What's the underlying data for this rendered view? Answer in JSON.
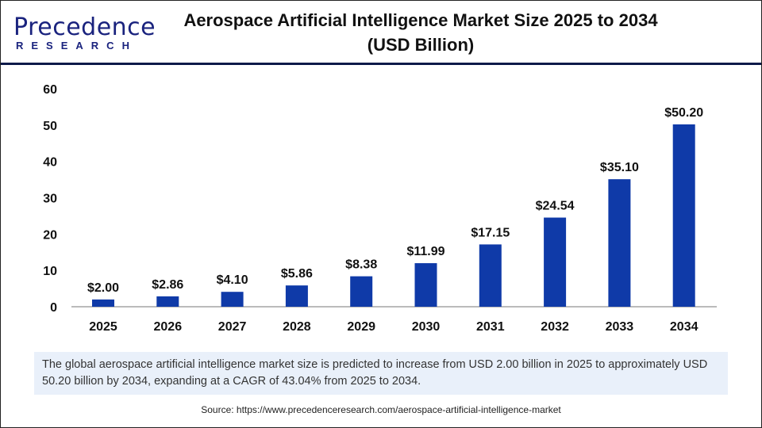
{
  "logo": {
    "line1": "Precedence",
    "line2": "RESEARCH"
  },
  "title": "Aerospace Artificial Intelligence Market Size 2025 to 2034 (USD Billion)",
  "chart_data": {
    "type": "bar",
    "categories": [
      "2025",
      "2026",
      "2027",
      "2028",
      "2029",
      "2030",
      "2031",
      "2032",
      "2033",
      "2034"
    ],
    "values": [
      2.0,
      2.86,
      4.1,
      5.86,
      8.38,
      11.99,
      17.15,
      24.54,
      35.1,
      50.2
    ],
    "data_labels": [
      "$2.00",
      "$2.86",
      "$4.10",
      "$5.86",
      "$8.38",
      "$11.99",
      "$17.15",
      "$24.54",
      "$35.10",
      "$50.20"
    ],
    "yticks": [
      0,
      10,
      20,
      30,
      40,
      50,
      60
    ],
    "ylim": [
      0,
      60
    ],
    "grid": false,
    "bar_color": "#0f3aa8"
  },
  "caption": "The global aerospace artificial intelligence market size is predicted to increase from USD 2.00 billion in 2025 to approximately USD 50.20 billion by 2034, expanding at a CAGR of 43.04% from 2025 to 2034.",
  "source": "Source: https://www.precedenceresearch.com/aerospace-artificial-intelligence-market"
}
